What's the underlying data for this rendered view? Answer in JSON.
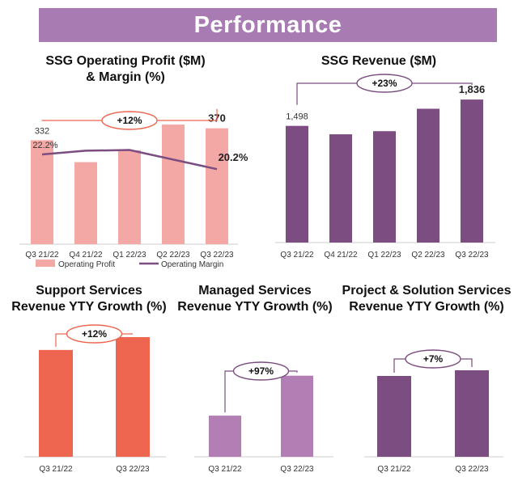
{
  "header": {
    "title": "Performance"
  },
  "colors": {
    "banner": "#a87bb3",
    "profit_bar": "#f4a8a6",
    "margin_line": "#7b4d80",
    "revenue_bar": "#7b4d80",
    "support_bar": "#ef6650",
    "managed_bar": "#b27eb4",
    "project_bar": "#7b4d80",
    "bracket_red": "#ef6650",
    "bracket_purple": "#7b4d80",
    "axis": "#cccccc"
  },
  "chart_data": [
    {
      "id": "op",
      "type": "bar+line",
      "title_lines": [
        "SSG Operating Profit ($M)",
        "& Margin (%)"
      ],
      "categories": [
        "Q3 21/22",
        "Q4 21/22",
        "Q1 22/23",
        "Q2 22/23",
        "Q3 22/23"
      ],
      "series": [
        {
          "name": "Operating Profit",
          "kind": "bar",
          "values": [
            332,
            262,
            300,
            382,
            370
          ],
          "color_key": "profit_bar"
        },
        {
          "name": "Operating Margin",
          "kind": "line",
          "unit": "%",
          "values": [
            22.2,
            22.7,
            22.8,
            21.5,
            20.2
          ],
          "color_key": "margin_line"
        }
      ],
      "bar_ylim": [
        0,
        470
      ],
      "line_ylim": [
        10,
        30
      ],
      "data_labels": [
        {
          "series": 0,
          "index": 0,
          "text": "332",
          "style": "normal"
        },
        {
          "series": 0,
          "index": 4,
          "text": "370",
          "style": "bold"
        },
        {
          "series": 1,
          "index": 0,
          "text": "22.2%",
          "style": "normal"
        },
        {
          "series": 1,
          "index": 4,
          "text": "20.2%",
          "style": "bold"
        }
      ],
      "growth": {
        "label": "+12%",
        "from_index": 0,
        "to_index": 4,
        "color_key": "bracket_red"
      },
      "legend": [
        "Operating Profit",
        "Operating Margin"
      ]
    },
    {
      "id": "rev",
      "type": "bar",
      "title_lines": [
        "SSG Revenue ($M)"
      ],
      "categories": [
        "Q3 21/22",
        "Q4 21/22",
        "Q1 22/23",
        "Q2 22/23",
        "Q3 22/23"
      ],
      "values": [
        1498,
        1390,
        1430,
        1718,
        1836
      ],
      "ylim": [
        0,
        2180
      ],
      "data_labels": [
        {
          "index": 0,
          "text": "1,498",
          "style": "normal"
        },
        {
          "index": 4,
          "text": "1,836",
          "style": "bold"
        }
      ],
      "growth": {
        "label": "+23%",
        "from_index": 0,
        "to_index": 4,
        "color_key": "bracket_purple"
      },
      "color_key": "revenue_bar"
    },
    {
      "id": "support",
      "type": "bar",
      "title_lines": [
        "Support Services",
        "Revenue YTY Growth (%)"
      ],
      "categories": [
        "Q3 21/22",
        "Q3 22/23"
      ],
      "values": [
        100,
        112
      ],
      "ylim": [
        0,
        140
      ],
      "growth": {
        "label": "+12%",
        "from_index": 0,
        "to_index": 1,
        "color_key": "bracket_red"
      },
      "color_key": "support_bar"
    },
    {
      "id": "managed",
      "type": "bar",
      "title_lines": [
        "Managed Services",
        "Revenue YTY Growth (%)"
      ],
      "categories": [
        "Q3 21/22",
        "Q3 22/23"
      ],
      "values": [
        100,
        197
      ],
      "ylim": [
        0,
        330
      ],
      "growth": {
        "label": "+97%",
        "from_index": 0,
        "to_index": 1,
        "color_key": "bracket_purple"
      },
      "color_key": "managed_bar"
    },
    {
      "id": "project",
      "type": "bar",
      "title_lines": [
        "Project & Solution Services",
        "Revenue YTY Growth (%)"
      ],
      "categories": [
        "Q3 21/22",
        "Q3 22/23"
      ],
      "values": [
        100,
        107
      ],
      "ylim": [
        0,
        165
      ],
      "growth": {
        "label": "+7%",
        "from_index": 0,
        "to_index": 1,
        "color_key": "bracket_purple"
      },
      "color_key": "project_bar"
    }
  ]
}
